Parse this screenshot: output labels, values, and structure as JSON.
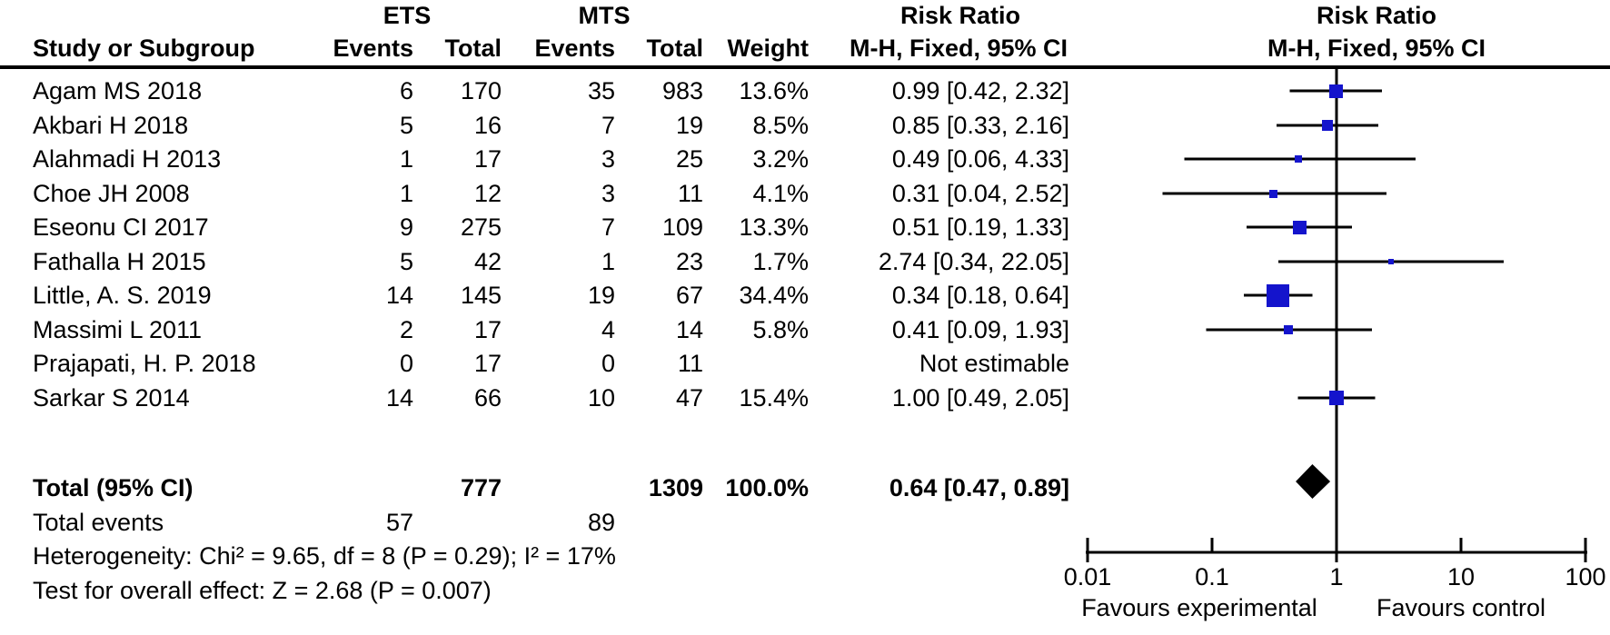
{
  "chart_data": {
    "type": "forest",
    "effect_label": "Risk Ratio",
    "method_label": "M-H, Fixed, 95% CI",
    "groups": {
      "group1": "ETS",
      "group2": "MTS"
    },
    "columns": {
      "study": "Study or Subgroup",
      "events": "Events",
      "total": "Total",
      "weight": "Weight"
    },
    "studies": [
      {
        "name": "Agam MS 2018",
        "e1": "6",
        "t1": "170",
        "e2": "35",
        "t2": "983",
        "weight": "13.6%",
        "weight_pct": 13.6,
        "ci_text": "0.99 [0.42, 2.32]",
        "rr": 0.99,
        "lo": 0.42,
        "hi": 2.32,
        "estimable": true
      },
      {
        "name": "Akbari H 2018",
        "e1": "5",
        "t1": "16",
        "e2": "7",
        "t2": "19",
        "weight": "8.5%",
        "weight_pct": 8.5,
        "ci_text": "0.85 [0.33, 2.16]",
        "rr": 0.85,
        "lo": 0.33,
        "hi": 2.16,
        "estimable": true
      },
      {
        "name": "Alahmadi H 2013",
        "e1": "1",
        "t1": "17",
        "e2": "3",
        "t2": "25",
        "weight": "3.2%",
        "weight_pct": 3.2,
        "ci_text": "0.49 [0.06, 4.33]",
        "rr": 0.49,
        "lo": 0.06,
        "hi": 4.33,
        "estimable": true
      },
      {
        "name": "Choe JH 2008",
        "e1": "1",
        "t1": "12",
        "e2": "3",
        "t2": "11",
        "weight": "4.1%",
        "weight_pct": 4.1,
        "ci_text": "0.31 [0.04, 2.52]",
        "rr": 0.31,
        "lo": 0.04,
        "hi": 2.52,
        "estimable": true
      },
      {
        "name": "Eseonu CI 2017",
        "e1": "9",
        "t1": "275",
        "e2": "7",
        "t2": "109",
        "weight": "13.3%",
        "weight_pct": 13.3,
        "ci_text": "0.51 [0.19, 1.33]",
        "rr": 0.51,
        "lo": 0.19,
        "hi": 1.33,
        "estimable": true
      },
      {
        "name": "Fathalla H 2015",
        "e1": "5",
        "t1": "42",
        "e2": "1",
        "t2": "23",
        "weight": "1.7%",
        "weight_pct": 1.7,
        "ci_text": "2.74 [0.34, 22.05]",
        "rr": 2.74,
        "lo": 0.34,
        "hi": 22.05,
        "estimable": true
      },
      {
        "name": "Little, A. S. 2019",
        "e1": "14",
        "t1": "145",
        "e2": "19",
        "t2": "67",
        "weight": "34.4%",
        "weight_pct": 34.4,
        "ci_text": "0.34 [0.18, 0.64]",
        "rr": 0.34,
        "lo": 0.18,
        "hi": 0.64,
        "estimable": true
      },
      {
        "name": "Massimi L 2011",
        "e1": "2",
        "t1": "17",
        "e2": "4",
        "t2": "14",
        "weight": "5.8%",
        "weight_pct": 5.8,
        "ci_text": "0.41 [0.09, 1.93]",
        "rr": 0.41,
        "lo": 0.09,
        "hi": 1.93,
        "estimable": true
      },
      {
        "name": "Prajapati, H. P. 2018",
        "e1": "0",
        "t1": "17",
        "e2": "0",
        "t2": "11",
        "weight": "",
        "weight_pct": 0,
        "ci_text": "Not estimable",
        "rr": null,
        "lo": null,
        "hi": null,
        "estimable": false
      },
      {
        "name": "Sarkar S 2014",
        "e1": "14",
        "t1": "66",
        "e2": "10",
        "t2": "47",
        "weight": "15.4%",
        "weight_pct": 15.4,
        "ci_text": "1.00 [0.49, 2.05]",
        "rr": 1.0,
        "lo": 0.49,
        "hi": 2.05,
        "estimable": true
      }
    ],
    "total": {
      "label": "Total (95% CI)",
      "t1": "777",
      "t2": "1309",
      "weight": "100.0%",
      "ci_text": "0.64 [0.47, 0.89]",
      "rr": 0.64,
      "lo": 0.47,
      "hi": 0.89
    },
    "total_events": {
      "label": "Total events",
      "e1": "57",
      "e2": "89"
    },
    "footer": {
      "heterogeneity": "Heterogeneity: Chi² = 9.65, df = 8 (P = 0.29); I² = 17%",
      "overall_effect": "Test for overall effect: Z = 2.68 (P = 0.007)"
    },
    "axis": {
      "scale": "log",
      "min": 0.01,
      "max": 100,
      "ticks": [
        0.01,
        0.1,
        1,
        10,
        100
      ],
      "tick_labels": [
        "0.01",
        "0.1",
        "1",
        "10",
        "100"
      ],
      "null_value": 1,
      "favours_left": "Favours experimental",
      "favours_right": "Favours control"
    },
    "colors": {
      "marker": "#1414cc",
      "diamond": "#000000",
      "line": "#000000",
      "text": "#000000"
    }
  }
}
